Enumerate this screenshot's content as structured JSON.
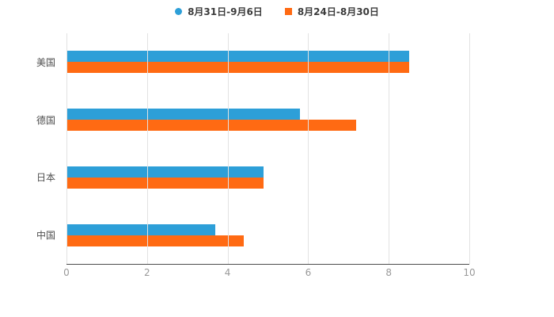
{
  "legend": {
    "series1": "8月31日-9月6日",
    "series2": "8月24日-8月30日"
  },
  "colors": {
    "series1": "#2D9FD8",
    "series2": "#FF6A13",
    "grid": "#e2e2e2",
    "axis": "#4d4d4d",
    "tick_label": "#999999",
    "category_label": "#4d4d4d"
  },
  "chart_data": {
    "type": "bar",
    "orientation": "horizontal",
    "title": "",
    "xlabel": "",
    "ylabel": "",
    "categories": [
      "美国",
      "德国",
      "日本",
      "中国"
    ],
    "series": [
      {
        "name": "8月31日-9月6日",
        "color": "#2D9FD8",
        "values": [
          8.5,
          5.8,
          4.9,
          3.7
        ]
      },
      {
        "name": "8月24日-8月30日",
        "color": "#FF6A13",
        "values": [
          8.5,
          7.2,
          4.9,
          4.4
        ]
      }
    ],
    "xlim": [
      0,
      10
    ],
    "xticks": [
      0,
      2,
      4,
      6,
      8,
      10
    ],
    "grid": true,
    "legend_position": "top"
  }
}
